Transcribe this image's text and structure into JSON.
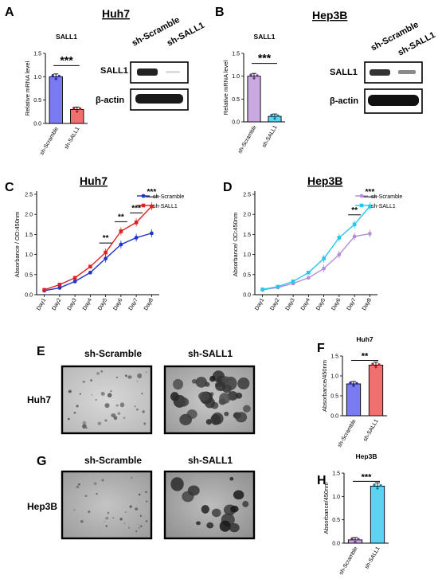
{
  "panel_labels": {
    "a": "A",
    "b": "B",
    "c": "C",
    "d": "D",
    "e": "E",
    "f": "F",
    "g": "G",
    "h": "H"
  },
  "cell_titles": {
    "a": "Huh7",
    "b": "Hep3B",
    "c": "Huh7",
    "d": "Hep3B"
  },
  "row_labels": {
    "e": "Huh7",
    "g": "Hep3B"
  },
  "colony_headers": {
    "e_left": "sh-Scramble",
    "e_right": "sh-SALL1",
    "g_left": "sh-Scramble",
    "g_right": "sh-SALL1"
  },
  "western": {
    "a": {
      "lanes": [
        "sh-Scramble",
        "sh-SALL1"
      ],
      "rows": [
        "SALL1",
        "β-actin"
      ]
    },
    "b": {
      "lanes": [
        "sh-Scramble",
        "sh-SALL1"
      ],
      "rows": [
        "SALL1",
        "β-actin"
      ]
    }
  },
  "colors": {
    "scramble_bar_a": "#7b7bf0",
    "sall1_bar_a": "#f07070",
    "scramble_bar_b": "#c9a9e0",
    "sall1_bar_b": "#5cd3f0",
    "scramble_line_c": "#2233cc",
    "sall1_line_c": "#e02020",
    "scramble_line_d": "#b48ed6",
    "sall1_line_d": "#22c8ee"
  },
  "chart_data": [
    {
      "panel": "A",
      "type": "bar",
      "title": "SALL1",
      "ylabel": "Relative mRNA level",
      "categories": [
        "sh-Scramble",
        "sh-SALL1"
      ],
      "values": [
        1.0,
        0.3
      ],
      "ylim": [
        0,
        1.5
      ],
      "yticks": [
        0.0,
        0.5,
        1.0,
        1.5
      ],
      "significance": "***"
    },
    {
      "panel": "B",
      "type": "bar",
      "title": "SALL1",
      "ylabel": "Relative mRNA level",
      "categories": [
        "sh-Scramble",
        "sh-SALL1"
      ],
      "values": [
        1.0,
        0.12
      ],
      "ylim": [
        0,
        1.5
      ],
      "yticks": [
        0.0,
        0.5,
        1.0,
        1.5
      ],
      "significance": "***"
    },
    {
      "panel": "C",
      "type": "line",
      "ylabel": "Absorbance / OD:450nm",
      "x": [
        "Day1",
        "Day2",
        "Day3",
        "Day4",
        "Day5",
        "Day6",
        "Day7",
        "Day8"
      ],
      "ylim": [
        0,
        2.5
      ],
      "yticks": [
        0.0,
        0.5,
        1.0,
        1.5,
        2.0,
        2.5
      ],
      "series": [
        {
          "name": "sh-Scramble",
          "values": [
            0.1,
            0.17,
            0.33,
            0.55,
            0.9,
            1.25,
            1.42,
            1.53
          ]
        },
        {
          "name": "sh-SALL1",
          "values": [
            0.12,
            0.25,
            0.42,
            0.7,
            1.05,
            1.58,
            1.8,
            2.2
          ]
        }
      ],
      "significance": [
        {
          "day": "Day5",
          "label": "**"
        },
        {
          "day": "Day6",
          "label": "**"
        },
        {
          "day": "Day7",
          "label": "***"
        },
        {
          "day": "Day8",
          "label": "***"
        }
      ],
      "legend": "top-right"
    },
    {
      "panel": "D",
      "type": "line",
      "ylabel": "Absorbance/ OD:450nm",
      "x": [
        "Day1",
        "Day2",
        "Day3",
        "Day4",
        "Day5",
        "Day6",
        "Day7",
        "Day8"
      ],
      "ylim": [
        0,
        2.5
      ],
      "yticks": [
        0.0,
        0.5,
        1.0,
        1.5,
        2.0,
        2.5
      ],
      "series": [
        {
          "name": "sh-Scramble",
          "values": [
            0.12,
            0.18,
            0.28,
            0.42,
            0.65,
            1.0,
            1.45,
            1.52
          ]
        },
        {
          "name": "sh-SALL1",
          "values": [
            0.13,
            0.2,
            0.33,
            0.55,
            0.9,
            1.42,
            1.75,
            2.2
          ]
        }
      ],
      "significance": [
        {
          "day": "Day7",
          "label": "**"
        },
        {
          "day": "Day8",
          "label": "***"
        }
      ],
      "legend": "top-right"
    },
    {
      "panel": "F",
      "type": "bar",
      "title": "Huh7",
      "ylabel": "Absorbance/450nm",
      "categories": [
        "sh-Scramble",
        "sh-SALL1"
      ],
      "values": [
        0.8,
        1.27
      ],
      "ylim": [
        0,
        1.5
      ],
      "yticks": [
        0.0,
        0.5,
        1.0,
        1.5
      ],
      "significance": "**"
    },
    {
      "panel": "H",
      "type": "bar",
      "title": "Hep3B",
      "ylabel": "Absorbance/450nm",
      "categories": [
        "sh-Scramble",
        "sh-SALL1"
      ],
      "values": [
        0.07,
        1.22
      ],
      "ylim": [
        0,
        1.5
      ],
      "yticks": [
        0.0,
        0.5,
        1.0,
        1.5
      ],
      "significance": "***"
    }
  ]
}
